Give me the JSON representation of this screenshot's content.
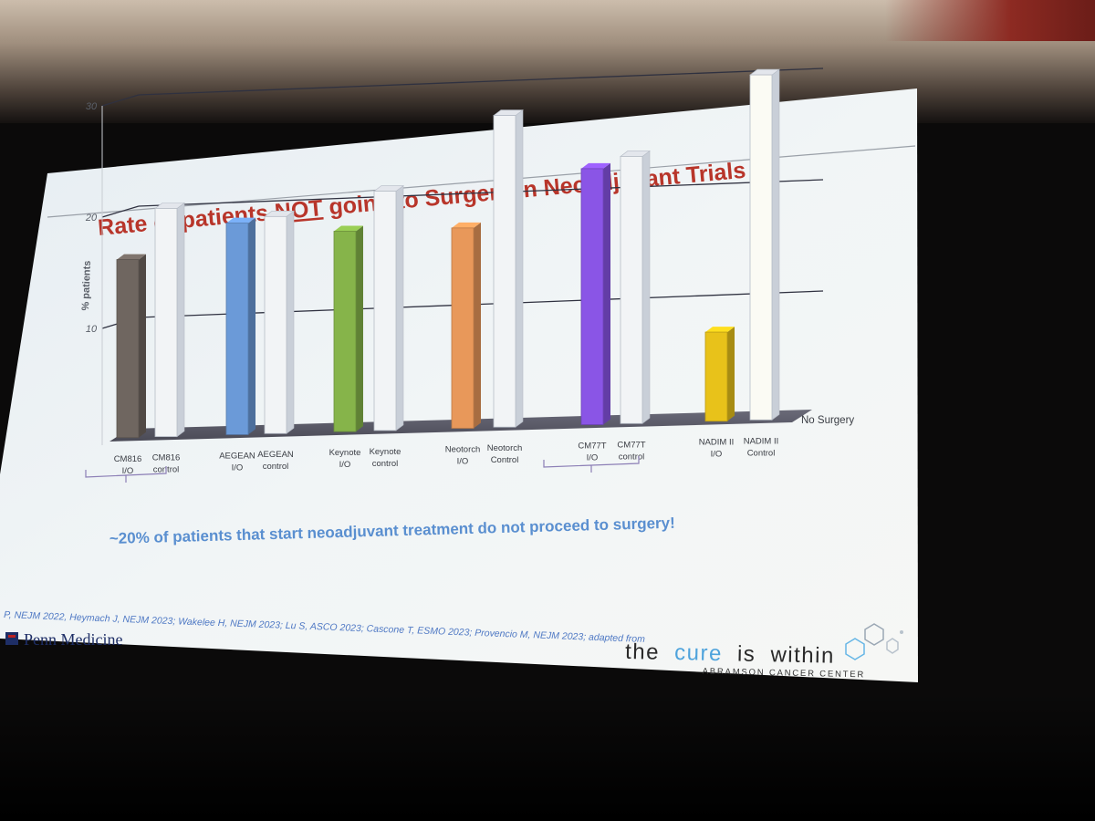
{
  "slide": {
    "title_part1": "Rate of patients ",
    "title_emph": "NOT",
    "title_part2": " going to Surgery in Neoadjuvant Trials",
    "footnote": "~20% of patients that start neoadjuvant treatment do not proceed to surgery!",
    "references": "P, NEJM 2022, Heymach J, NEJM 2023; Wakelee H, NEJM 2023; Lu S, ASCO 2023; Cascone T, ESMO 2023; Provencio M, NEJM 2023; adapted from",
    "penn_logo_text": "Penn Medicine",
    "tagline_the": "the",
    "tagline_cure": "cure",
    "tagline_is": "is",
    "tagline_within": "within",
    "center_name": "ABRAMSON CANCER CENTER",
    "colors": {
      "title": "#b8352a",
      "footnote": "#5a8fd0",
      "cure": "#4ea3dc"
    }
  },
  "chart_data": {
    "type": "bar",
    "ylabel": "% patients",
    "xlabel": "",
    "ylim": [
      0,
      30
    ],
    "yticks": [
      "10",
      "20",
      "30"
    ],
    "depth_axis_label": "No Surgery",
    "bars": [
      {
        "label_line1": "CM816",
        "label_line2": "I/O",
        "value": 16,
        "color": "#6f6660"
      },
      {
        "label_line1": "CM816",
        "label_line2": "control",
        "value": 20.5,
        "color": "#f2f4f6"
      },
      {
        "label_line1": "AEGEAN",
        "label_line2": "I/O",
        "value": 19,
        "color": "#6b9ad8"
      },
      {
        "label_line1": "AEGEAN",
        "label_line2": "control",
        "value": 19.5,
        "color": "#f2f4f6"
      },
      {
        "label_line1": "Keynote",
        "label_line2": "I/O",
        "value": 18,
        "color": "#86b44a"
      },
      {
        "label_line1": "Keynote",
        "label_line2": "control",
        "value": 21.5,
        "color": "#f2f4f6"
      },
      {
        "label_line1": "Neotorch",
        "label_line2": "I/O",
        "value": 18,
        "color": "#e8985a"
      },
      {
        "label_line1": "Neotorch",
        "label_line2": "Control",
        "value": 28,
        "color": "#f2f4f6"
      },
      {
        "label_line1": "CM77T",
        "label_line2": "I/O",
        "value": 23,
        "color": "#8a55e6"
      },
      {
        "label_line1": "CM77T",
        "label_line2": "control",
        "value": 24,
        "color": "#f2f4f6"
      },
      {
        "label_line1": "NADIM II",
        "label_line2": "I/O",
        "value": 8,
        "color": "#e8c21a"
      },
      {
        "label_line1": "NADIM II",
        "label_line2": "Control",
        "value": 31,
        "color": "#fbfbf4"
      }
    ],
    "grid": true,
    "legend": "none"
  }
}
